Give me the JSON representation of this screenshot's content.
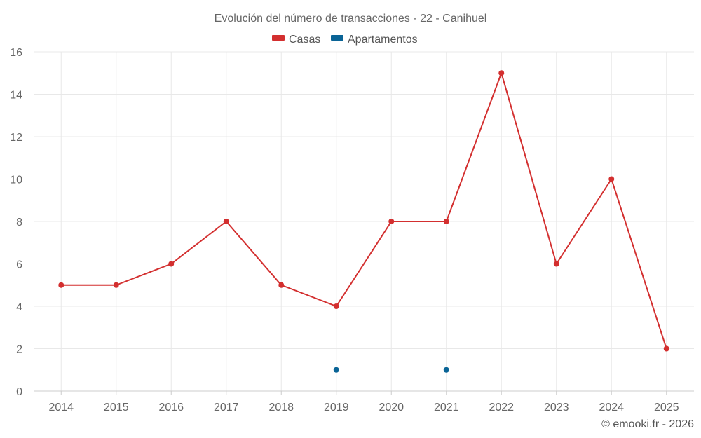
{
  "chart_data": {
    "type": "line",
    "title": "Evolución del número de transacciones - 22 - Canihuel",
    "categories": [
      "2014",
      "2015",
      "2016",
      "2017",
      "2018",
      "2019",
      "2020",
      "2021",
      "2022",
      "2023",
      "2024",
      "2025"
    ],
    "series": [
      {
        "name": "Casas",
        "color": "#d32f2f",
        "values": [
          5,
          5,
          6,
          8,
          5,
          4,
          8,
          8,
          15,
          6,
          10,
          2
        ]
      },
      {
        "name": "Apartamentos",
        "color": "#0a6496",
        "values": [
          null,
          null,
          null,
          null,
          null,
          1,
          null,
          1,
          null,
          null,
          null,
          null
        ]
      }
    ],
    "ylim": [
      0,
      16
    ],
    "yticks": [
      0,
      2,
      4,
      6,
      8,
      10,
      12,
      14,
      16
    ],
    "grid": true,
    "legend": "top-center"
  },
  "credit": "© emooki.fr - 2026"
}
